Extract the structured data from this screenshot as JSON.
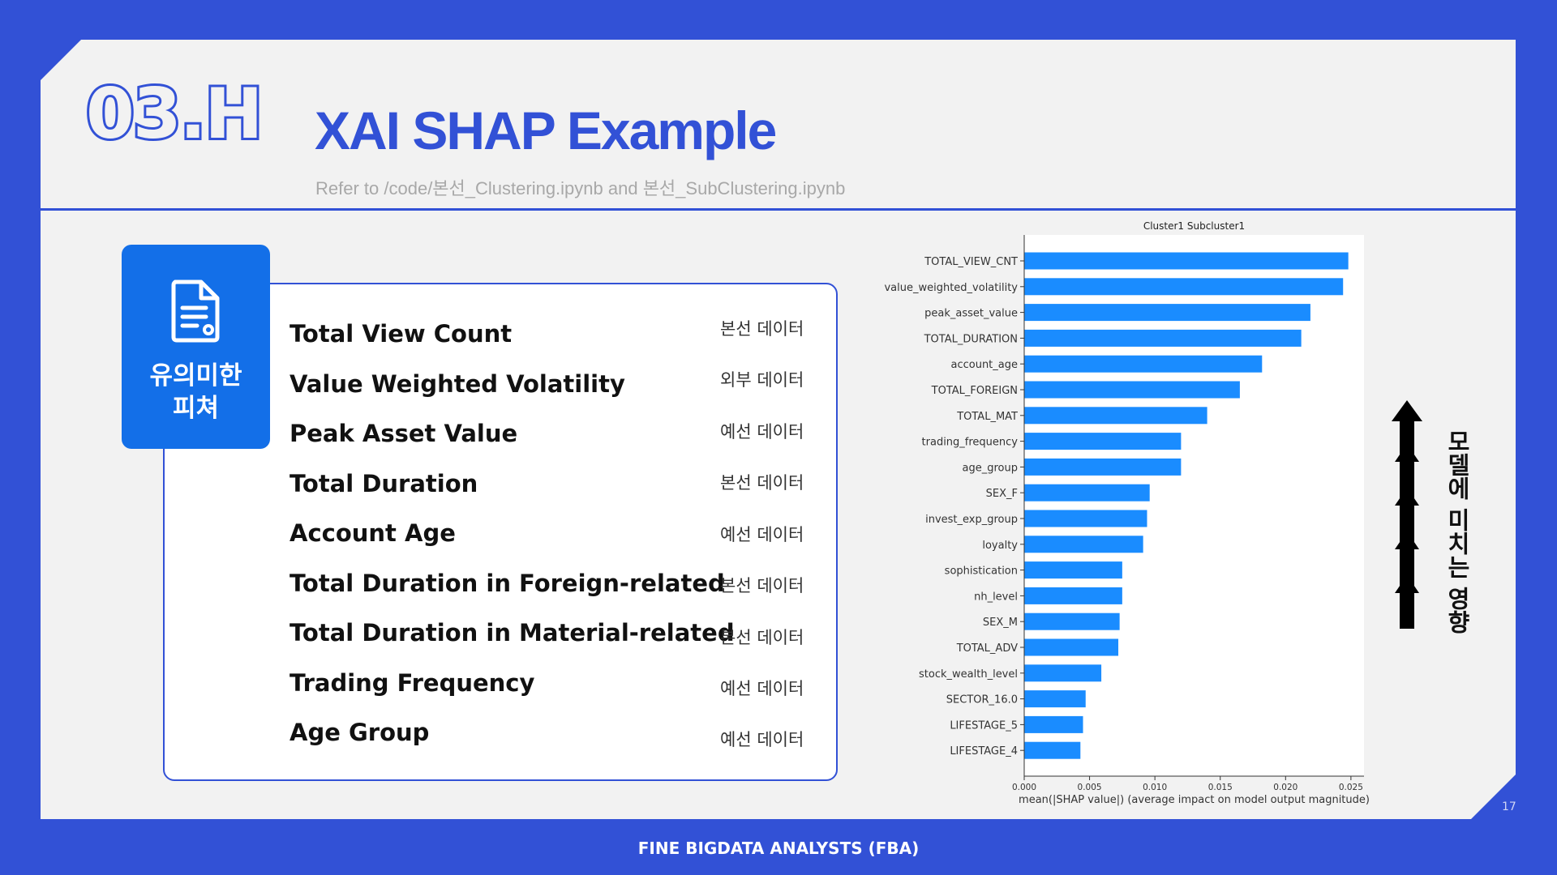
{
  "header": {
    "section_number": "03.H",
    "title": "XAI SHAP Example",
    "subtitle": "Refer to /code/본선_Clustering.ipynb and 본선_SubClustering.ipynb"
  },
  "feature_panel": {
    "tag_label": "유의미한\n피쳐",
    "tag_icon": "document-icon",
    "features": [
      {
        "name": "Total View Count",
        "source": "본선 데이터"
      },
      {
        "name": "Value Weighted Volatility",
        "source": "외부 데이터"
      },
      {
        "name": "Peak Asset Value",
        "source": "예선 데이터"
      },
      {
        "name": "Total Duration",
        "source": "본선 데이터"
      },
      {
        "name": "Account Age",
        "source": "예선 데이터"
      },
      {
        "name": "Total Duration in Foreign-related",
        "source": "본선 데이터"
      },
      {
        "name": "Total Duration in Material-related",
        "source": "본선 데이터"
      },
      {
        "name": "Trading Frequency",
        "source": "예선 데이터"
      },
      {
        "name": "Age Group",
        "source": "예선 데이터"
      }
    ]
  },
  "chart_data": {
    "type": "bar",
    "orientation": "horizontal",
    "title": "Cluster1 Subcluster1",
    "xlabel": "mean(|SHAP value|) (average impact on model output magnitude)",
    "ylabel": "",
    "xlim": [
      0,
      0.026
    ],
    "xticks": [
      "0.000",
      "0.005",
      "0.010",
      "0.015",
      "0.020",
      "0.025"
    ],
    "grid": false,
    "bar_color": "#1a8cff",
    "categories": [
      "TOTAL_VIEW_CNT",
      "value_weighted_volatility",
      "peak_asset_value",
      "TOTAL_DURATION",
      "account_age",
      "TOTAL_FOREIGN",
      "TOTAL_MAT",
      "trading_frequency",
      "age_group",
      "SEX_F",
      "invest_exp_group",
      "loyalty",
      "sophistication",
      "nh_level",
      "SEX_M",
      "TOTAL_ADV",
      "stock_wealth_level",
      "SECTOR_16.0",
      "LIFESTAGE_5",
      "LIFESTAGE_4"
    ],
    "values": [
      0.0248,
      0.0244,
      0.0219,
      0.0212,
      0.0182,
      0.0165,
      0.014,
      0.012,
      0.012,
      0.0096,
      0.0094,
      0.0091,
      0.0075,
      0.0075,
      0.0073,
      0.0072,
      0.0059,
      0.0047,
      0.0045,
      0.0043
    ]
  },
  "impact_annotation": {
    "label": "모델에 미치는 영향",
    "icon": "up-arrow-icon",
    "color": "#000000"
  },
  "page_number": "17",
  "footer": "FINE BIGDATA ANALYSTS (FBA)",
  "colors": {
    "brand_blue": "#3251d6",
    "tag_blue": "#136fe8",
    "slide_bg": "#f2f2f2"
  }
}
